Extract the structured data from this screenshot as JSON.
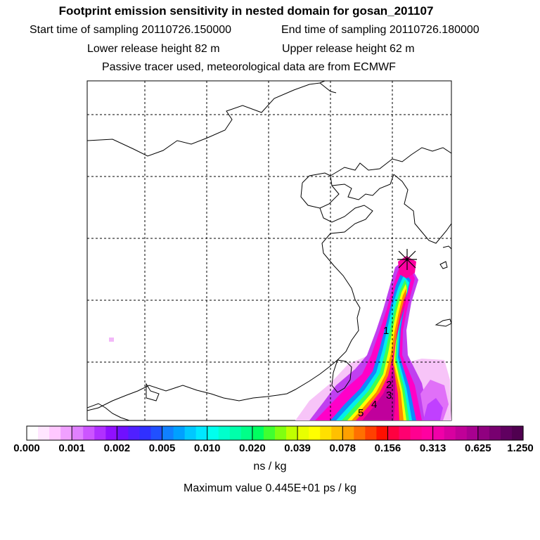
{
  "header": {
    "title": "Footprint emission sensitivity in nested domain for gosan_201107",
    "start_label": "Start time of sampling 20110726.150000",
    "end_label": "End time of sampling 20110726.180000",
    "lower_label": "Lower release height   82 m",
    "upper_label": "Upper release height   62 m",
    "note": "Passive tracer used, meteorological data are from ECMWF"
  },
  "chart_data": {
    "type": "heatmap",
    "title": "Footprint emission sensitivity in nested domain for gosan_201107",
    "grid": true,
    "colorbar": {
      "unit": "ns / kg",
      "tick_labels": [
        "0.000",
        "0.001",
        "0.002",
        "0.005",
        "0.010",
        "0.020",
        "0.039",
        "0.078",
        "0.156",
        "0.313",
        "0.625",
        "1.250"
      ],
      "colors": [
        "#ffffff",
        "#ffe6ff",
        "#ffc8ff",
        "#f0a0ff",
        "#e080ff",
        "#cc55ff",
        "#b030ff",
        "#9010ff",
        "#7010ff",
        "#5020ff",
        "#3030ff",
        "#2050ff",
        "#1080ff",
        "#00a0ff",
        "#00c8ff",
        "#00e8ff",
        "#00ffee",
        "#00ffcc",
        "#00ffaa",
        "#00ff88",
        "#00ff60",
        "#40ff30",
        "#80ff10",
        "#c0ff00",
        "#e8ff00",
        "#ffff00",
        "#ffe000",
        "#ffc000",
        "#ffa000",
        "#ff7000",
        "#ff4000",
        "#ff1000",
        "#ff0040",
        "#ff0070",
        "#ff0090",
        "#ff00a0",
        "#f000a8",
        "#d800a0",
        "#c00098",
        "#a80090",
        "#900080",
        "#780070",
        "#600060",
        "#500050"
      ]
    },
    "markers": [
      {
        "label": "1"
      },
      {
        "label": "2"
      },
      {
        "label": "3"
      },
      {
        "label": "4"
      },
      {
        "label": "5"
      }
    ],
    "max_label": "Maximum value  0.445E+01 ps / kg"
  }
}
